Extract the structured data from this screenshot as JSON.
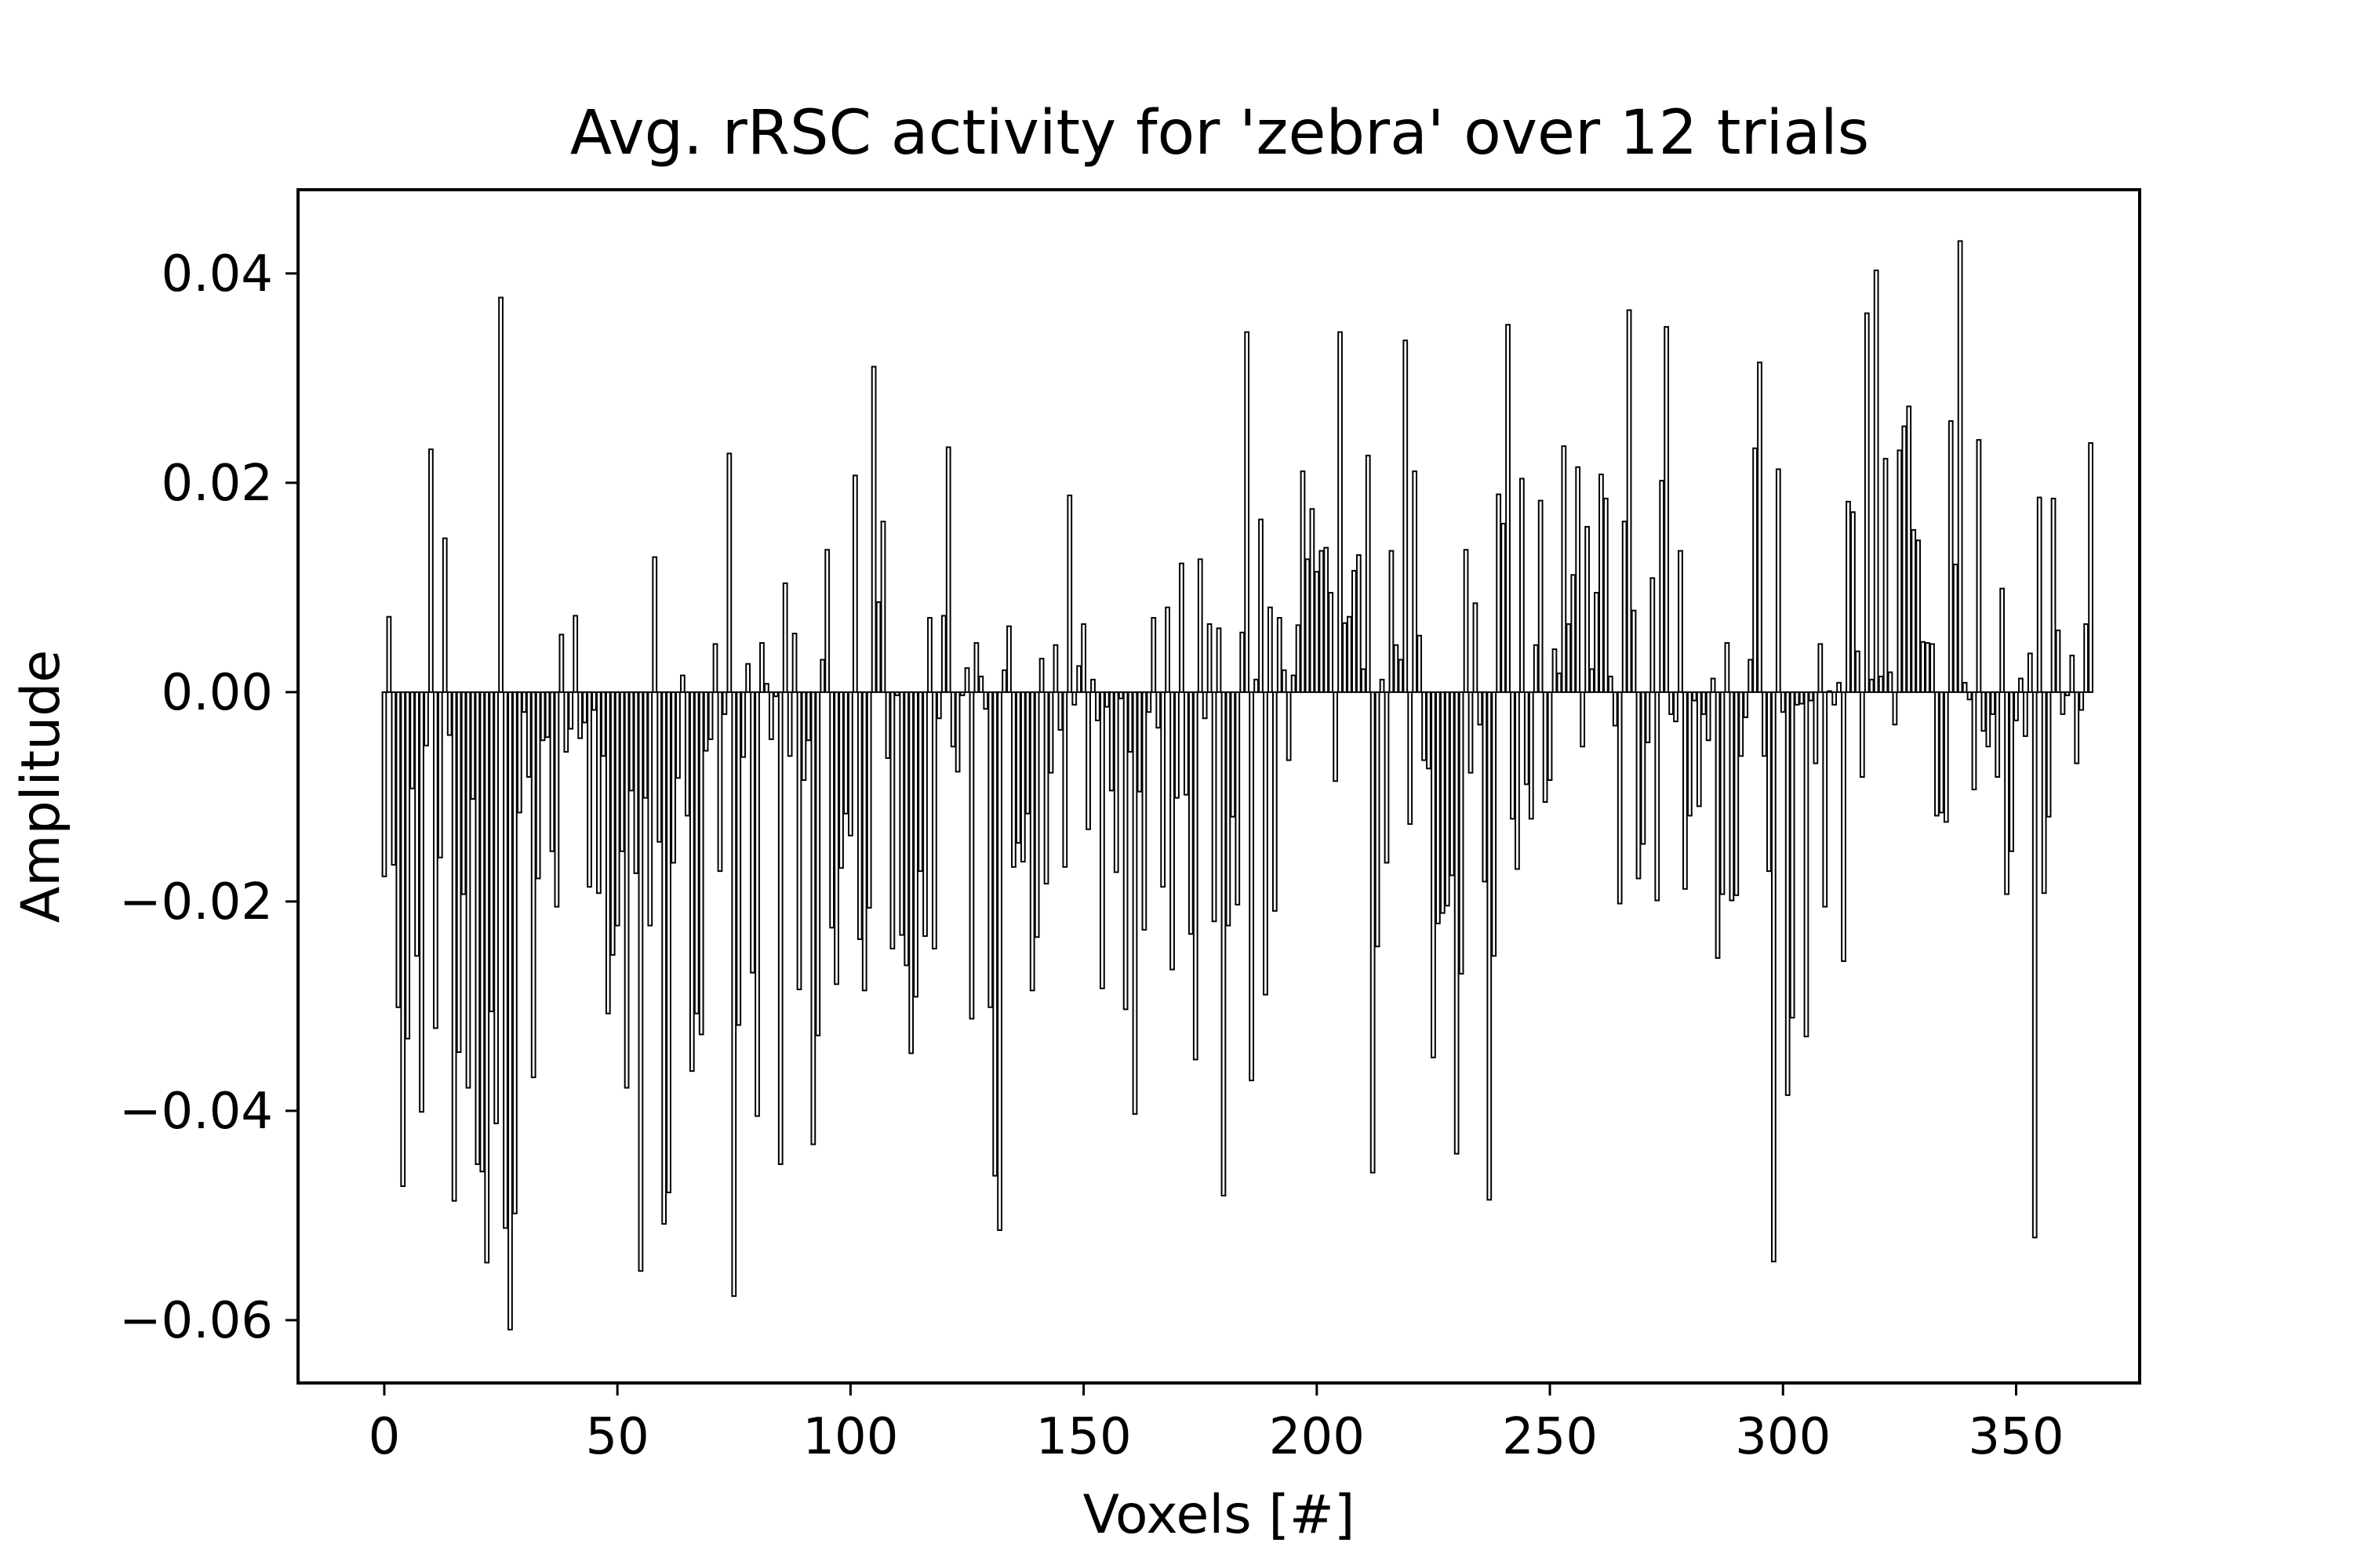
{
  "chart_data": {
    "type": "bar",
    "title": "Avg. rRSC activity for 'zebra' over 12 trials",
    "xlabel": "Voxels [#]",
    "ylabel": "Amplitude",
    "xlim": [
      -18.5,
      376.5
    ],
    "ylim": [
      -0.066,
      0.048
    ],
    "xticks": [
      0,
      50,
      100,
      150,
      200,
      250,
      300,
      350
    ],
    "xtick_labels": [
      "0",
      "50",
      "100",
      "150",
      "200",
      "250",
      "300",
      "350"
    ],
    "yticks": [
      -0.06,
      -0.04,
      -0.02,
      0.0,
      0.02,
      0.04
    ],
    "ytick_labels": [
      "−0.06",
      "−0.04",
      "−0.02",
      "0.00",
      "0.02",
      "0.04"
    ],
    "grid": false,
    "bar_color": "#000000",
    "x_start": 0,
    "values": [
      -0.0176,
      0.0072,
      -0.0165,
      -0.0301,
      -0.0472,
      -0.0331,
      -0.0092,
      -0.0252,
      -0.0401,
      -0.0051,
      0.0232,
      -0.0321,
      -0.0158,
      0.0147,
      -0.0041,
      -0.0486,
      -0.0344,
      -0.0193,
      -0.0378,
      -0.0102,
      -0.0451,
      -0.0458,
      -0.0545,
      -0.0305,
      -0.0412,
      0.0377,
      -0.0512,
      -0.0609,
      -0.0498,
      -0.0115,
      -0.0019,
      -0.0081,
      -0.0368,
      -0.0178,
      -0.0046,
      -0.0043,
      -0.0152,
      -0.0205,
      0.0055,
      -0.0057,
      -0.0035,
      0.0073,
      -0.0044,
      -0.0029,
      -0.0186,
      -0.0017,
      -0.0192,
      -0.0061,
      -0.0307,
      -0.0251,
      -0.0223,
      -0.0152,
      -0.0378,
      -0.0094,
      -0.0173,
      -0.0553,
      -0.0101,
      -0.0223,
      0.0129,
      -0.0143,
      -0.0508,
      -0.0478,
      -0.0163,
      -0.0082,
      0.0016,
      -0.0118,
      -0.0362,
      -0.0307,
      -0.0327,
      -0.0056,
      -0.0045,
      0.0046,
      -0.0171,
      -0.0021,
      0.0228,
      -0.0577,
      -0.0318,
      -0.0062,
      0.0027,
      -0.0268,
      -0.0405,
      0.0047,
      0.0008,
      -0.0045,
      -0.0004,
      -0.0451,
      0.0104,
      -0.0061,
      0.0056,
      -0.0284,
      -0.0084,
      -0.0046,
      -0.0432,
      -0.0328,
      0.0031,
      0.0136,
      -0.0225,
      -0.0279,
      -0.0168,
      -0.0116,
      -0.0137,
      0.0207,
      -0.0236,
      -0.0285,
      -0.0206,
      0.0311,
      0.0086,
      0.0163,
      -0.0063,
      -0.0245,
      -0.0003,
      -0.0232,
      -0.0261,
      -0.0345,
      -0.0291,
      -0.0171,
      -0.0233,
      0.0071,
      -0.0245,
      -0.0025,
      0.0073,
      0.0234,
      -0.0052,
      -0.0076,
      -0.0003,
      0.0023,
      -0.0312,
      0.0047,
      0.0015,
      -0.0016,
      -0.0301,
      -0.0462,
      -0.0514,
      0.0021,
      0.0063,
      -0.0167,
      -0.0144,
      -0.0162,
      -0.0116,
      -0.0285,
      -0.0234,
      0.0032,
      -0.0183,
      -0.0077,
      0.0045,
      -0.0036,
      -0.0167,
      0.0188,
      -0.0012,
      0.0025,
      0.0065,
      -0.0131,
      0.0012,
      -0.0027,
      -0.0283,
      -0.0014,
      -0.0094,
      -0.0172,
      -0.0006,
      -0.0303,
      -0.0057,
      -0.0403,
      -0.0095,
      -0.0227,
      -0.0019,
      0.0071,
      -0.0034,
      -0.0186,
      0.0081,
      -0.0265,
      -0.0101,
      0.0123,
      -0.0098,
      -0.0231,
      -0.0351,
      0.0127,
      -0.0025,
      0.0065,
      -0.0219,
      0.0061,
      -0.0481,
      -0.0223,
      -0.0119,
      -0.0203,
      0.0057,
      0.0344,
      -0.0371,
      0.0012,
      0.0165,
      -0.0289,
      0.0081,
      -0.0209,
      0.0071,
      0.0021,
      -0.0065,
      0.0016,
      0.0064,
      0.0211,
      0.0127,
      0.0175,
      0.0115,
      0.0135,
      0.0138,
      0.0095,
      -0.0085,
      0.0344,
      0.0066,
      0.0072,
      0.0116,
      0.0131,
      0.0022,
      0.0226,
      -0.0459,
      -0.0243,
      0.0012,
      -0.0163,
      0.0135,
      0.0045,
      0.0031,
      0.0336,
      -0.0126,
      0.0211,
      0.0054,
      -0.0065,
      -0.0073,
      -0.0349,
      -0.0221,
      -0.0211,
      -0.0204,
      -0.0175,
      -0.0441,
      -0.0269,
      0.0136,
      -0.0077,
      0.0085,
      -0.0031,
      -0.0181,
      -0.0485,
      -0.0252,
      0.0189,
      0.0161,
      0.0351,
      -0.0121,
      -0.0169,
      0.0204,
      -0.0088,
      -0.0121,
      0.0045,
      0.0183,
      -0.0105,
      -0.0084,
      0.0041,
      0.0018,
      0.0235,
      0.0065,
      0.0112,
      0.0215,
      -0.0052,
      0.0158,
      0.0022,
      0.0095,
      0.0208,
      0.0185,
      0.0015,
      -0.0032,
      -0.0202,
      0.0163,
      0.0365,
      0.0078,
      -0.0178,
      -0.0145,
      -0.0048,
      0.0109,
      -0.0199,
      0.0202,
      0.0349,
      -0.0021,
      -0.0028,
      0.0135,
      -0.0188,
      -0.0118,
      -0.0008,
      -0.0109,
      -0.0021,
      -0.0046,
      0.0013,
      -0.0254,
      -0.0193,
      0.0047,
      -0.0199,
      -0.0194,
      -0.0061,
      -0.0024,
      0.0031,
      0.0233,
      0.0315,
      -0.0061,
      -0.0171,
      -0.0544,
      0.0213,
      -0.0019,
      -0.0385,
      -0.0311,
      -0.0012,
      -0.0011,
      -0.0329,
      -0.0008,
      -0.0068,
      0.0046,
      -0.0205,
      0.0001,
      -0.0012,
      0.0009,
      -0.0257,
      0.0182,
      0.0172,
      0.0039,
      -0.0081,
      0.0362,
      0.0012,
      0.0403,
      0.0015,
      0.0223,
      0.0019,
      -0.0031,
      0.0231,
      0.0254,
      0.0273,
      0.0155,
      0.0145,
      0.0048,
      0.0047,
      0.0046,
      -0.0118,
      -0.0115,
      -0.0124,
      0.0259,
      0.0122,
      0.0431,
      0.0009,
      -0.0007,
      -0.0093,
      0.0241,
      -0.0037,
      -0.0052,
      -0.0021,
      -0.0081,
      0.0099,
      -0.0193,
      -0.0152,
      -0.0027,
      0.0013,
      -0.0042,
      0.0037,
      -0.0521,
      0.0186,
      -0.0192,
      -0.0119,
      0.0185,
      0.0059,
      -0.0021,
      -0.0003,
      0.0035,
      -0.0068,
      -0.0017,
      0.0065,
      0.0238
    ]
  }
}
